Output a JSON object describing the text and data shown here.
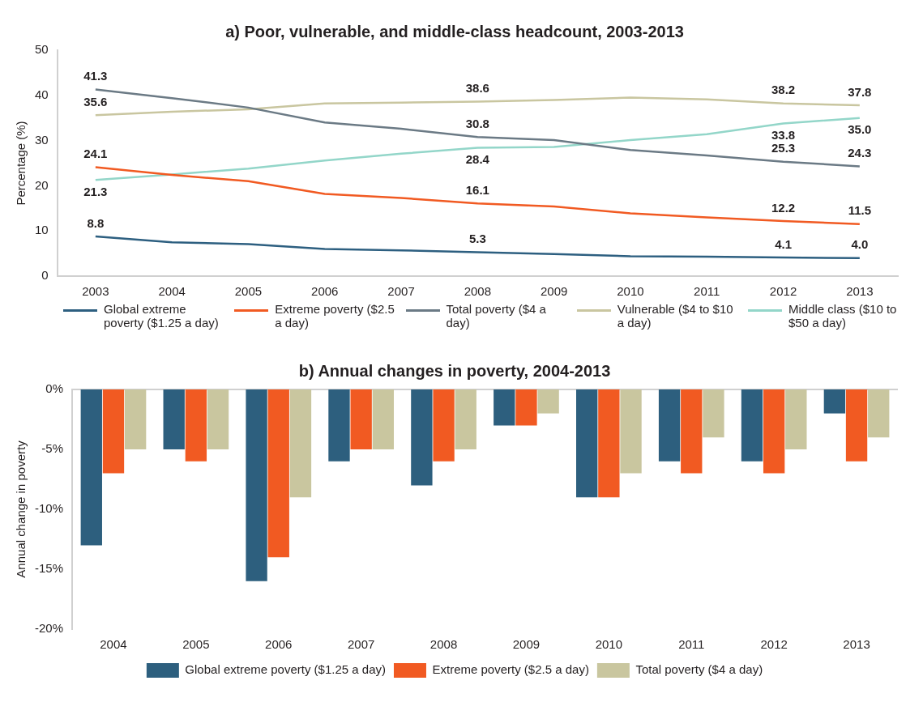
{
  "chart_data": [
    {
      "type": "line",
      "title": "a) Poor, vulnerable, and middle-class headcount, 2003-2013",
      "ylabel": "Percentage (%)",
      "categories": [
        "2003",
        "2004",
        "2005",
        "2006",
        "2007",
        "2008",
        "2009",
        "2010",
        "2011",
        "2012",
        "2013"
      ],
      "series": [
        {
          "name": "Global extreme poverty ($1.25 a day)",
          "color": "#2d5f80",
          "values": [
            8.8,
            7.5,
            7.1,
            6.0,
            5.7,
            5.3,
            4.9,
            4.4,
            4.3,
            4.1,
            4.0
          ],
          "value_labels": [
            "8.8",
            null,
            null,
            null,
            null,
            "5.3",
            null,
            null,
            null,
            "4.1",
            "4.0"
          ]
        },
        {
          "name": "Extreme poverty ($2.5 a day)",
          "color": "#f15a22",
          "values": [
            24.1,
            22.4,
            21.0,
            18.2,
            17.3,
            16.1,
            15.4,
            13.9,
            13.0,
            12.2,
            11.5
          ],
          "value_labels": [
            "24.1",
            null,
            null,
            null,
            null,
            "16.1",
            null,
            null,
            null,
            "12.2",
            "11.5"
          ]
        },
        {
          "name": "Total poverty ($4 a day)",
          "color": "#6b7a85",
          "values": [
            41.3,
            39.4,
            37.3,
            34.0,
            32.6,
            30.8,
            30.1,
            27.9,
            26.7,
            25.3,
            24.3
          ],
          "value_labels": [
            "41.3",
            null,
            null,
            null,
            null,
            "30.8",
            null,
            null,
            null,
            "25.3",
            "24.3"
          ]
        },
        {
          "name": "Vulnerable ($4 to $10 a day)",
          "color": "#c9c6a0",
          "values": [
            35.6,
            36.4,
            36.9,
            38.2,
            38.4,
            38.6,
            39.0,
            39.5,
            39.1,
            38.2,
            37.8
          ],
          "value_labels": [
            "35.6",
            null,
            null,
            null,
            null,
            "38.6",
            null,
            null,
            null,
            "38.2",
            "37.8"
          ]
        },
        {
          "name": "Middle class ($10 to $50 a day)",
          "color": "#93d6c9",
          "values": [
            21.3,
            22.5,
            23.8,
            25.6,
            27.1,
            28.4,
            28.6,
            30.1,
            31.4,
            33.8,
            35.0
          ],
          "value_labels": [
            "21.3",
            null,
            null,
            null,
            null,
            "28.4",
            null,
            null,
            null,
            "33.8",
            "35.0"
          ]
        }
      ],
      "ylim": [
        0,
        50
      ],
      "yticks": [
        0,
        10,
        20,
        30,
        40,
        50
      ],
      "grid": false,
      "legend": "bottom"
    },
    {
      "type": "bar",
      "title": "b) Annual changes in poverty, 2004-2013",
      "ylabel": "Annual change in poverty",
      "categories": [
        "2004",
        "2005",
        "2006",
        "2007",
        "2008",
        "2009",
        "2010",
        "2011",
        "2012",
        "2013"
      ],
      "series": [
        {
          "name": "Global extreme poverty ($1.25 a day)",
          "color": "#2d5f7e",
          "values": [
            -13,
            -5,
            -16,
            -6,
            -8,
            -3,
            -9,
            -6,
            -6,
            -2
          ]
        },
        {
          "name": "Extreme poverty ($2.5 a day)",
          "color": "#f15a22",
          "values": [
            -7,
            -6,
            -14,
            -5,
            -6,
            -3,
            -9,
            -7,
            -7,
            -6
          ]
        },
        {
          "name": "Total poverty ($4 a day)",
          "color": "#c9c69f",
          "values": [
            -5,
            -5,
            -9,
            -5,
            -5,
            -2,
            -7,
            -4,
            -5,
            -4
          ]
        }
      ],
      "ylim": [
        -20,
        0
      ],
      "yticks": [
        {
          "value": 0,
          "label": "0%"
        },
        {
          "value": -5,
          "label": "-5%"
        },
        {
          "value": -10,
          "label": "-10%"
        },
        {
          "value": -15,
          "label": "-15%"
        },
        {
          "value": -20,
          "label": "-20%"
        }
      ],
      "grid": false,
      "legend": "bottom"
    }
  ]
}
